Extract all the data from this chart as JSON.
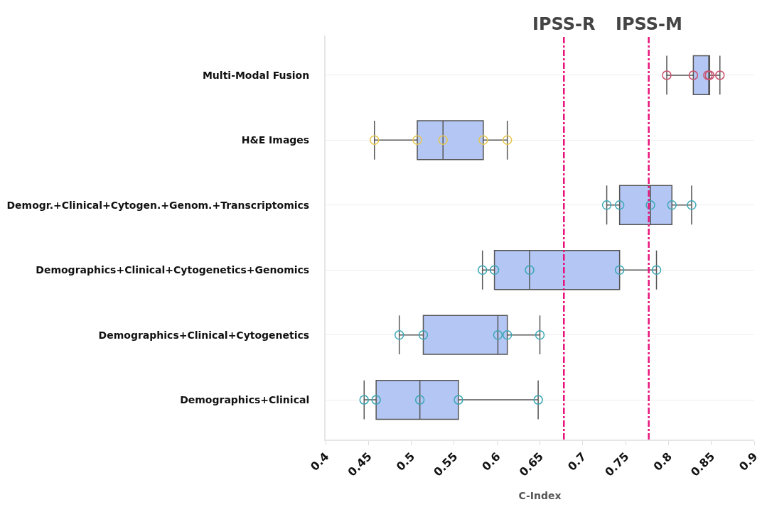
{
  "chart_data": {
    "type": "box",
    "orientation": "horizontal",
    "xlabel": "C-Index",
    "categories": [
      "Multi-Modal Fusion",
      "H&E Images",
      "Demogr.+Clinical+Cytogen.+Genom.+Transcriptomics",
      "Demographics+Clinical+Cytogenetics+Genomics",
      "Demographics+Clinical+Cytogenetics",
      "Demographics+Clinical"
    ],
    "series": [
      {
        "color": "#b4c7f4",
        "boxes": [
          {
            "low": 0.798,
            "q1": 0.829,
            "median": 0.847,
            "q3": 0.848,
            "high": 0.86
          },
          {
            "low": 0.457,
            "q1": 0.507,
            "median": 0.537,
            "q3": 0.584,
            "high": 0.612
          },
          {
            "low": 0.728,
            "q1": 0.743,
            "median": 0.779,
            "q3": 0.804,
            "high": 0.827
          },
          {
            "low": 0.583,
            "q1": 0.597,
            "median": 0.638,
            "q3": 0.743,
            "high": 0.786
          },
          {
            "low": 0.486,
            "q1": 0.514,
            "median": 0.601,
            "q3": 0.612,
            "high": 0.65
          },
          {
            "low": 0.445,
            "q1": 0.459,
            "median": 0.51,
            "q3": 0.555,
            "high": 0.648
          }
        ]
      },
      {
        "type": "scatter",
        "color": "#c9536f",
        "x": [
          "Multi-Modal Fusion",
          "Multi-Modal Fusion",
          "Multi-Modal Fusion",
          "Multi-Modal Fusion",
          "Multi-Modal Fusion"
        ],
        "values": [
          0.798,
          0.829,
          0.846,
          0.848,
          0.86
        ]
      },
      {
        "type": "scatter",
        "color": "#e6c84e",
        "x": [
          "H&E Images",
          "H&E Images",
          "H&E Images",
          "H&E Images",
          "H&E Images"
        ],
        "values": [
          0.457,
          0.507,
          0.537,
          0.584,
          0.612
        ]
      },
      {
        "type": "scatter",
        "color": "#3aa7b5",
        "x": [
          "Demogr.+Clinical+Cytogen.+Genom.+Transcriptomics",
          "Demogr.+Clinical+Cytogen.+Genom.+Transcriptomics",
          "Demogr.+Clinical+Cytogen.+Genom.+Transcriptomics",
          "Demogr.+Clinical+Cytogen.+Genom.+Transcriptomics",
          "Demogr.+Clinical+Cytogen.+Genom.+Transcriptomics",
          "Demographics+Clinical+Cytogenetics+Genomics",
          "Demographics+Clinical+Cytogenetics+Genomics",
          "Demographics+Clinical+Cytogenetics+Genomics",
          "Demographics+Clinical+Cytogenetics+Genomics",
          "Demographics+Clinical+Cytogenetics+Genomics",
          "Demographics+Clinical+Cytogenetics",
          "Demographics+Clinical+Cytogenetics",
          "Demographics+Clinical+Cytogenetics",
          "Demographics+Clinical+Cytogenetics",
          "Demographics+Clinical+Cytogenetics",
          "Demographics+Clinical",
          "Demographics+Clinical",
          "Demographics+Clinical",
          "Demographics+Clinical",
          "Demographics+Clinical"
        ],
        "values": [
          0.728,
          0.743,
          0.779,
          0.804,
          0.827,
          0.583,
          0.597,
          0.638,
          0.743,
          0.786,
          0.486,
          0.514,
          0.601,
          0.612,
          0.65,
          0.445,
          0.459,
          0.51,
          0.555,
          0.648
        ]
      }
    ],
    "xlim": [
      0.4,
      0.9
    ],
    "xticks": [
      0.4,
      0.45,
      0.5,
      0.55,
      0.6,
      0.65,
      0.7,
      0.75,
      0.8,
      0.85,
      0.9
    ],
    "ref_lines": [
      {
        "axis": "x",
        "value": 0.678,
        "label": "IPSS-R",
        "color": "#e8137a",
        "line_style": "dashdot"
      },
      {
        "axis": "x",
        "value": 0.777,
        "label": "IPSS-M",
        "color": "#e8137a",
        "line_style": "dashdot"
      }
    ],
    "grid": "y",
    "marker": "circle"
  }
}
